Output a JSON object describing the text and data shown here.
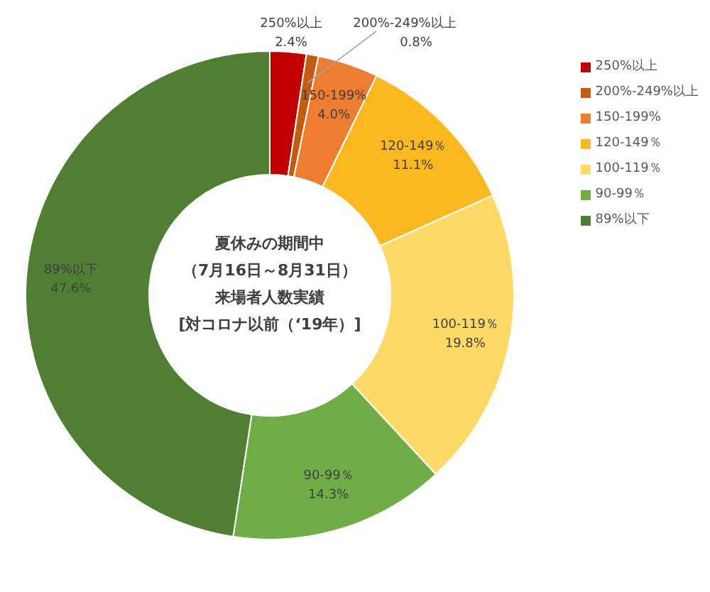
{
  "chart_data": {
    "type": "donut",
    "title": "夏休みの期間中（7月16日～8月31日）来場者人数実績[対コロナ以前（‘19年）]",
    "categories": [
      "250%以上",
      "200%-249%以上",
      "150-199%",
      "120-149％",
      "100-119％",
      "90-99％",
      "89%以下"
    ],
    "values": [
      2.4,
      0.8,
      4.0,
      11.1,
      19.8,
      14.3,
      47.6
    ],
    "value_labels": [
      "2.4%",
      "0.8%",
      "4.0%",
      "11.1%",
      "19.8%",
      "14.3%",
      "47.6%"
    ],
    "colors": [
      "#c00000",
      "#c55a11",
      "#ed7d31",
      "#fbb820",
      "#ffd966",
      "#70ad47",
      "#507e32"
    ],
    "legend": "top right"
  }
}
